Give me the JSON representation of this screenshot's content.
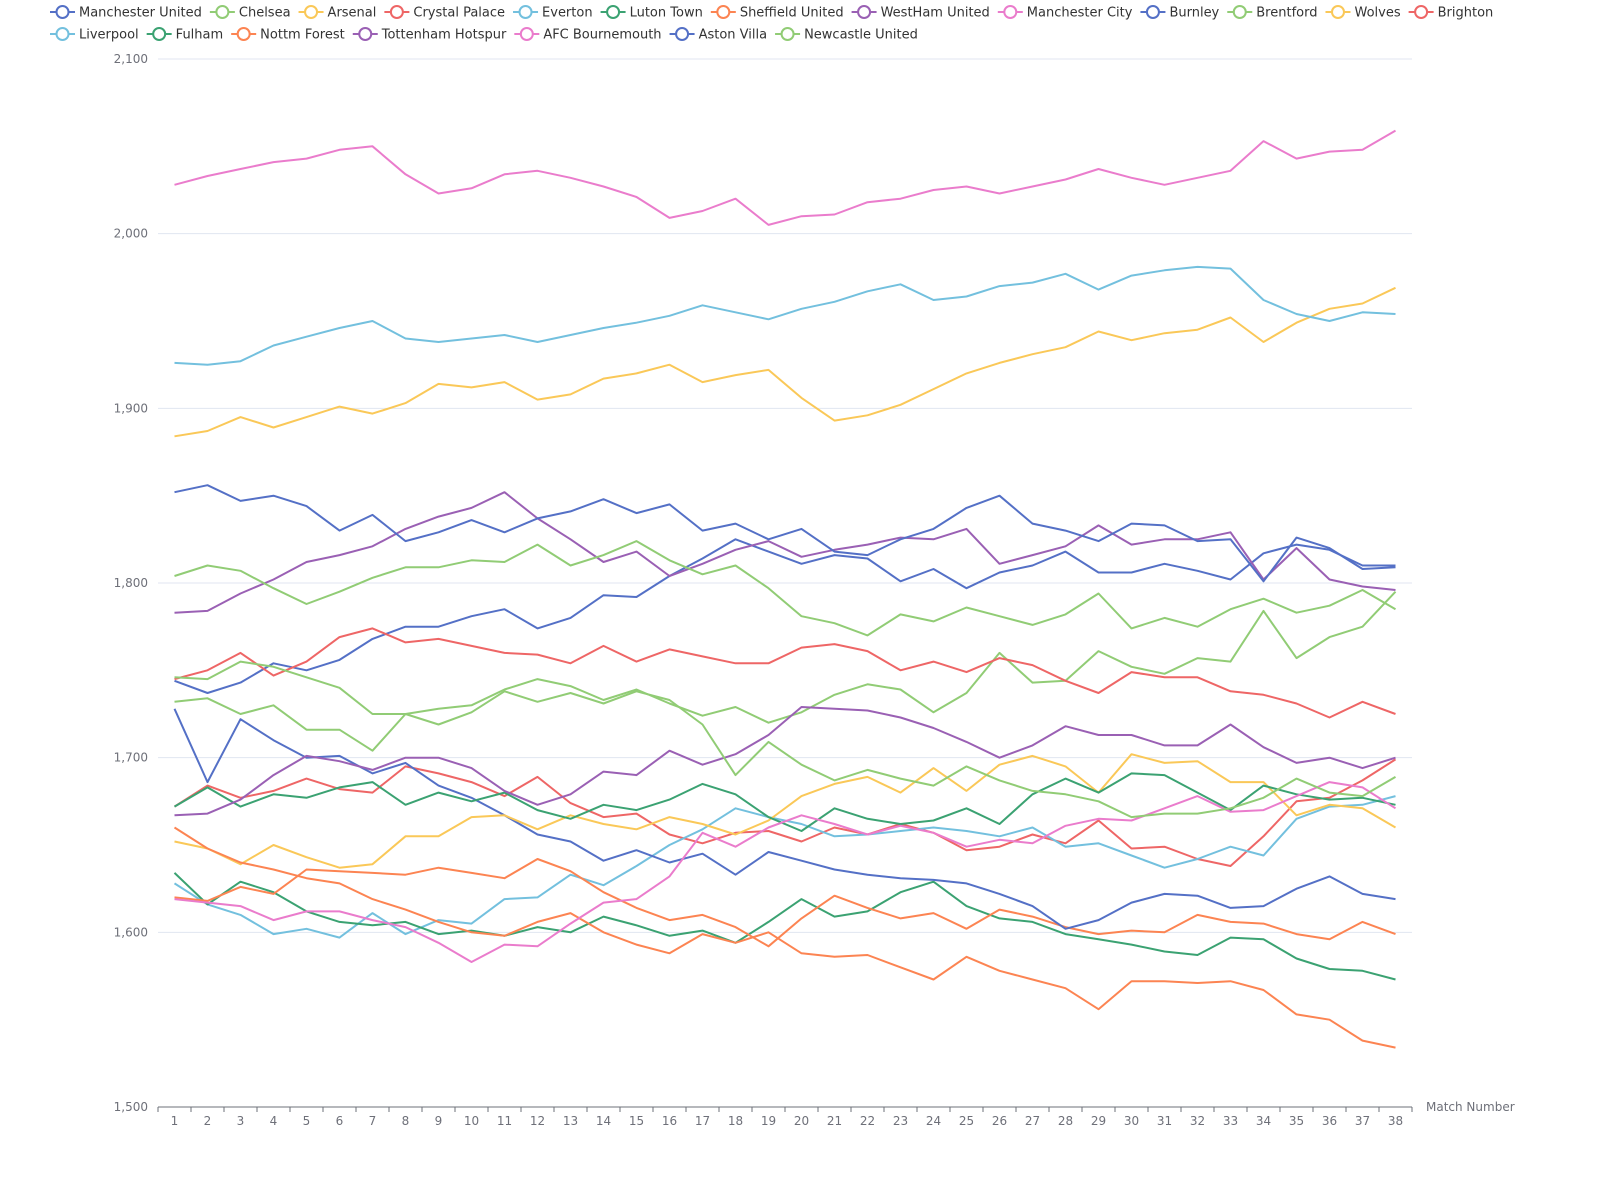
{
  "chart_data": {
    "type": "line",
    "xlabel": "Match Number",
    "ylabel": "",
    "ylim": [
      1500,
      2100
    ],
    "yticks": [
      "1,500",
      "1,600",
      "1,700",
      "1,800",
      "1,900",
      "2,000",
      "2,100"
    ],
    "x": [
      1,
      2,
      3,
      4,
      5,
      6,
      7,
      8,
      9,
      10,
      11,
      12,
      13,
      14,
      15,
      16,
      17,
      18,
      19,
      20,
      21,
      22,
      23,
      24,
      25,
      26,
      27,
      28,
      29,
      30,
      31,
      32,
      33,
      34,
      35,
      36,
      37,
      38
    ],
    "grid": "horizontal",
    "legend": "top",
    "series": [
      {
        "name": "Manchester United",
        "color": "#5470c6",
        "values": [
          1744,
          1737,
          1743,
          1754,
          1750,
          1756,
          1768,
          1775,
          1775,
          1781,
          1785,
          1774,
          1780,
          1793,
          1792,
          1804,
          1814,
          1825,
          1818,
          1811,
          1816,
          1814,
          1801,
          1808,
          1797,
          1806,
          1810,
          1818,
          1806,
          1806,
          1811,
          1807,
          1802,
          1817,
          1822,
          1819,
          1810,
          1810
        ]
      },
      {
        "name": "Chelsea",
        "color": "#91cc75",
        "values": [
          1732,
          1734,
          1725,
          1730,
          1716,
          1716,
          1704,
          1725,
          1728,
          1730,
          1739,
          1745,
          1741,
          1733,
          1739,
          1731,
          1724,
          1729,
          1720,
          1726,
          1736,
          1742,
          1739,
          1726,
          1737,
          1760,
          1743,
          1744,
          1761,
          1752,
          1748,
          1757,
          1755,
          1784,
          1757,
          1769,
          1775,
          1795
        ]
      },
      {
        "name": "Arsenal",
        "color": "#fac858",
        "values": [
          1884,
          1887,
          1895,
          1889,
          1895,
          1901,
          1897,
          1903,
          1914,
          1912,
          1915,
          1905,
          1908,
          1917,
          1920,
          1925,
          1915,
          1919,
          1922,
          1906,
          1893,
          1896,
          1902,
          1911,
          1920,
          1926,
          1931,
          1935,
          1944,
          1939,
          1943,
          1945,
          1952,
          1938,
          1949,
          1957,
          1960,
          1969
        ]
      },
      {
        "name": "Crystal Palace",
        "color": "#ee6666",
        "values": [
          1672,
          1684,
          1677,
          1681,
          1688,
          1682,
          1680,
          1695,
          1691,
          1686,
          1678,
          1689,
          1674,
          1666,
          1668,
          1656,
          1651,
          1657,
          1658,
          1652,
          1660,
          1656,
          1662,
          1657,
          1647,
          1649,
          1656,
          1651,
          1664,
          1648,
          1649,
          1642,
          1638,
          1655,
          1675,
          1677,
          1687,
          1699
        ]
      },
      {
        "name": "Everton",
        "color": "#73c0de",
        "values": [
          1628,
          1616,
          1610,
          1599,
          1602,
          1597,
          1611,
          1599,
          1607,
          1605,
          1619,
          1620,
          1633,
          1627,
          1638,
          1650,
          1659,
          1671,
          1666,
          1662,
          1655,
          1656,
          1658,
          1660,
          1658,
          1655,
          1660,
          1649,
          1651,
          1644,
          1637,
          1642,
          1649,
          1644,
          1665,
          1672,
          1673,
          1678
        ]
      },
      {
        "name": "Luton Town",
        "color": "#3ba272",
        "values": [
          1634,
          1616,
          1629,
          1623,
          1612,
          1606,
          1604,
          1606,
          1599,
          1601,
          1598,
          1603,
          1600,
          1609,
          1604,
          1598,
          1601,
          1594,
          1606,
          1619,
          1609,
          1612,
          1623,
          1629,
          1615,
          1608,
          1606,
          1599,
          1596,
          1593,
          1589,
          1587,
          1597,
          1596,
          1585,
          1579,
          1578,
          1573
        ]
      },
      {
        "name": "Sheffield United",
        "color": "#fc8452",
        "values": [
          1620,
          1618,
          1626,
          1622,
          1636,
          1635,
          1634,
          1633,
          1637,
          1634,
          1631,
          1642,
          1635,
          1623,
          1614,
          1607,
          1610,
          1603,
          1592,
          1608,
          1621,
          1614,
          1608,
          1611,
          1602,
          1613,
          1609,
          1603,
          1599,
          1601,
          1600,
          1610,
          1606,
          1605,
          1599,
          1596,
          1606,
          1599
        ]
      },
      {
        "name": "WestHam United",
        "color": "#9a60b4",
        "values": [
          1783,
          1784,
          1794,
          1802,
          1812,
          1816,
          1821,
          1831,
          1838,
          1843,
          1852,
          1837,
          1825,
          1812,
          1818,
          1804,
          1811,
          1819,
          1824,
          1815,
          1819,
          1822,
          1826,
          1825,
          1831,
          1811,
          1816,
          1821,
          1833,
          1822,
          1825,
          1825,
          1829,
          1802,
          1820,
          1802,
          1798,
          1796
        ]
      },
      {
        "name": "Manchester City",
        "color": "#ea7ccc",
        "values": [
          2028,
          2033,
          2037,
          2041,
          2043,
          2048,
          2050,
          2034,
          2023,
          2026,
          2034,
          2036,
          2032,
          2027,
          2021,
          2009,
          2013,
          2020,
          2005,
          2010,
          2011,
          2018,
          2020,
          2025,
          2027,
          2023,
          2027,
          2031,
          2037,
          2032,
          2028,
          2032,
          2036,
          2053,
          2043,
          2047,
          2048,
          2059
        ]
      },
      {
        "name": "Burnley",
        "color": "#5470c6",
        "values": [
          1728,
          1686,
          1722,
          1710,
          1700,
          1701,
          1691,
          1697,
          1684,
          1677,
          1667,
          1656,
          1652,
          1641,
          1647,
          1640,
          1645,
          1633,
          1646,
          1641,
          1636,
          1633,
          1631,
          1630,
          1628,
          1622,
          1615,
          1602,
          1607,
          1617,
          1622,
          1621,
          1614,
          1615,
          1625,
          1632,
          1622,
          1619
        ]
      },
      {
        "name": "Brentford",
        "color": "#91cc75",
        "values": [
          1804,
          1810,
          1807,
          1797,
          1788,
          1795,
          1803,
          1809,
          1809,
          1813,
          1812,
          1822,
          1810,
          1816,
          1824,
          1813,
          1805,
          1810,
          1797,
          1781,
          1777,
          1770,
          1782,
          1778,
          1786,
          1781,
          1776,
          1782,
          1794,
          1774,
          1780,
          1775,
          1785,
          1791,
          1783,
          1787,
          1796,
          1785
        ]
      },
      {
        "name": "Wolves",
        "color": "#fac858",
        "values": [
          1652,
          1648,
          1639,
          1650,
          1643,
          1637,
          1639,
          1655,
          1655,
          1666,
          1667,
          1659,
          1667,
          1662,
          1659,
          1666,
          1662,
          1656,
          1664,
          1678,
          1685,
          1689,
          1680,
          1694,
          1681,
          1696,
          1701,
          1695,
          1680,
          1702,
          1697,
          1698,
          1686,
          1686,
          1667,
          1673,
          1671,
          1660
        ]
      },
      {
        "name": "Brighton",
        "color": "#ee6666",
        "values": [
          1745,
          1750,
          1760,
          1747,
          1755,
          1769,
          1774,
          1766,
          1768,
          1764,
          1760,
          1759,
          1754,
          1764,
          1755,
          1762,
          1758,
          1754,
          1754,
          1763,
          1765,
          1761,
          1750,
          1755,
          1749,
          1757,
          1753,
          1744,
          1737,
          1749,
          1746,
          1746,
          1738,
          1736,
          1731,
          1723,
          1732,
          1725
        ]
      },
      {
        "name": "Liverpool",
        "color": "#73c0de",
        "values": [
          1926,
          1925,
          1927,
          1936,
          1941,
          1946,
          1950,
          1940,
          1938,
          1940,
          1942,
          1938,
          1942,
          1946,
          1949,
          1953,
          1959,
          1955,
          1951,
          1957,
          1961,
          1967,
          1971,
          1962,
          1964,
          1970,
          1972,
          1977,
          1968,
          1976,
          1979,
          1981,
          1980,
          1962,
          1954,
          1950,
          1955,
          1954
        ]
      },
      {
        "name": "Fulham",
        "color": "#3ba272",
        "values": [
          1672,
          1683,
          1672,
          1679,
          1677,
          1683,
          1686,
          1673,
          1680,
          1675,
          1680,
          1670,
          1665,
          1673,
          1670,
          1676,
          1685,
          1679,
          1666,
          1658,
          1671,
          1665,
          1662,
          1664,
          1671,
          1662,
          1679,
          1688,
          1680,
          1691,
          1690,
          1680,
          1670,
          1684,
          1679,
          1676,
          1677,
          1673
        ]
      },
      {
        "name": "Nottm Forest",
        "color": "#fc8452",
        "values": [
          1660,
          1648,
          1640,
          1636,
          1631,
          1628,
          1619,
          1613,
          1606,
          1600,
          1598,
          1606,
          1611,
          1600,
          1593,
          1588,
          1599,
          1594,
          1600,
          1588,
          1586,
          1587,
          1580,
          1573,
          1586,
          1578,
          1573,
          1568,
          1556,
          1572,
          1572,
          1571,
          1572,
          1567,
          1553,
          1550,
          1538,
          1534
        ]
      },
      {
        "name": "Tottenham Hotspur",
        "color": "#9a60b4",
        "values": [
          1667,
          1668,
          1676,
          1690,
          1701,
          1698,
          1693,
          1700,
          1700,
          1694,
          1681,
          1673,
          1679,
          1692,
          1690,
          1704,
          1696,
          1702,
          1713,
          1729,
          1728,
          1727,
          1723,
          1717,
          1709,
          1700,
          1707,
          1718,
          1713,
          1713,
          1707,
          1707,
          1719,
          1706,
          1697,
          1700,
          1694,
          1700
        ]
      },
      {
        "name": "AFC Bournemouth",
        "color": "#ea7ccc",
        "values": [
          1619,
          1617,
          1615,
          1607,
          1612,
          1612,
          1607,
          1603,
          1594,
          1583,
          1593,
          1592,
          1605,
          1617,
          1619,
          1632,
          1657,
          1649,
          1660,
          1667,
          1662,
          1656,
          1661,
          1657,
          1649,
          1653,
          1651,
          1661,
          1665,
          1664,
          1671,
          1678,
          1669,
          1670,
          1678,
          1686,
          1683,
          1671
        ]
      },
      {
        "name": "Aston Villa",
        "color": "#5470c6",
        "values": [
          1852,
          1856,
          1847,
          1850,
          1844,
          1830,
          1839,
          1824,
          1829,
          1836,
          1829,
          1837,
          1841,
          1848,
          1840,
          1845,
          1830,
          1834,
          1825,
          1831,
          1818,
          1816,
          1825,
          1831,
          1843,
          1850,
          1834,
          1830,
          1824,
          1834,
          1833,
          1824,
          1825,
          1801,
          1826,
          1820,
          1808,
          1809
        ]
      },
      {
        "name": "Newcastle United",
        "color": "#91cc75",
        "values": [
          1746,
          1745,
          1755,
          1752,
          1746,
          1740,
          1725,
          1725,
          1719,
          1726,
          1738,
          1732,
          1737,
          1731,
          1738,
          1733,
          1719,
          1690,
          1709,
          1696,
          1687,
          1693,
          1688,
          1684,
          1695,
          1687,
          1681,
          1679,
          1675,
          1666,
          1668,
          1668,
          1671,
          1677,
          1688,
          1680,
          1678,
          1689
        ]
      }
    ]
  }
}
